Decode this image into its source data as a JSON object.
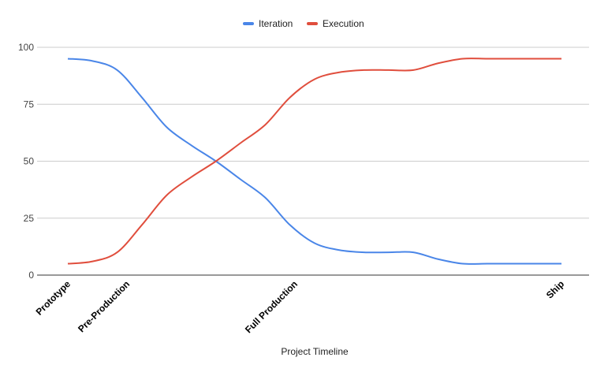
{
  "chart_data": {
    "type": "line",
    "title": "",
    "xlabel": "Project Timeline",
    "ylabel": "",
    "ylim": [
      0,
      100
    ],
    "yticks": [
      0,
      25,
      50,
      75,
      100
    ],
    "grid": true,
    "legend_position": "top",
    "x": [
      0,
      5,
      10,
      15,
      20,
      25,
      30,
      35,
      40,
      45,
      50,
      55,
      60,
      65,
      70,
      75,
      80,
      85,
      90,
      95,
      100
    ],
    "x_tick_labels": [
      {
        "x": 0,
        "label": "Prototype"
      },
      {
        "x": 12,
        "label": "Pre-Production"
      },
      {
        "x": 46,
        "label": "Full Production"
      },
      {
        "x": 100,
        "label": "Ship"
      }
    ],
    "series": [
      {
        "name": "Iteration",
        "color": "#4a86e8",
        "values": [
          95,
          94,
          90,
          78,
          65,
          57,
          50,
          42,
          34,
          22,
          14,
          11,
          10,
          10,
          10,
          7,
          5,
          5,
          5,
          5,
          5
        ]
      },
      {
        "name": "Execution",
        "color": "#e04e3d",
        "values": [
          5,
          6,
          10,
          22,
          35,
          43,
          50,
          58,
          66,
          78,
          86,
          89,
          90,
          90,
          90,
          93,
          95,
          95,
          95,
          95,
          95
        ]
      }
    ]
  }
}
